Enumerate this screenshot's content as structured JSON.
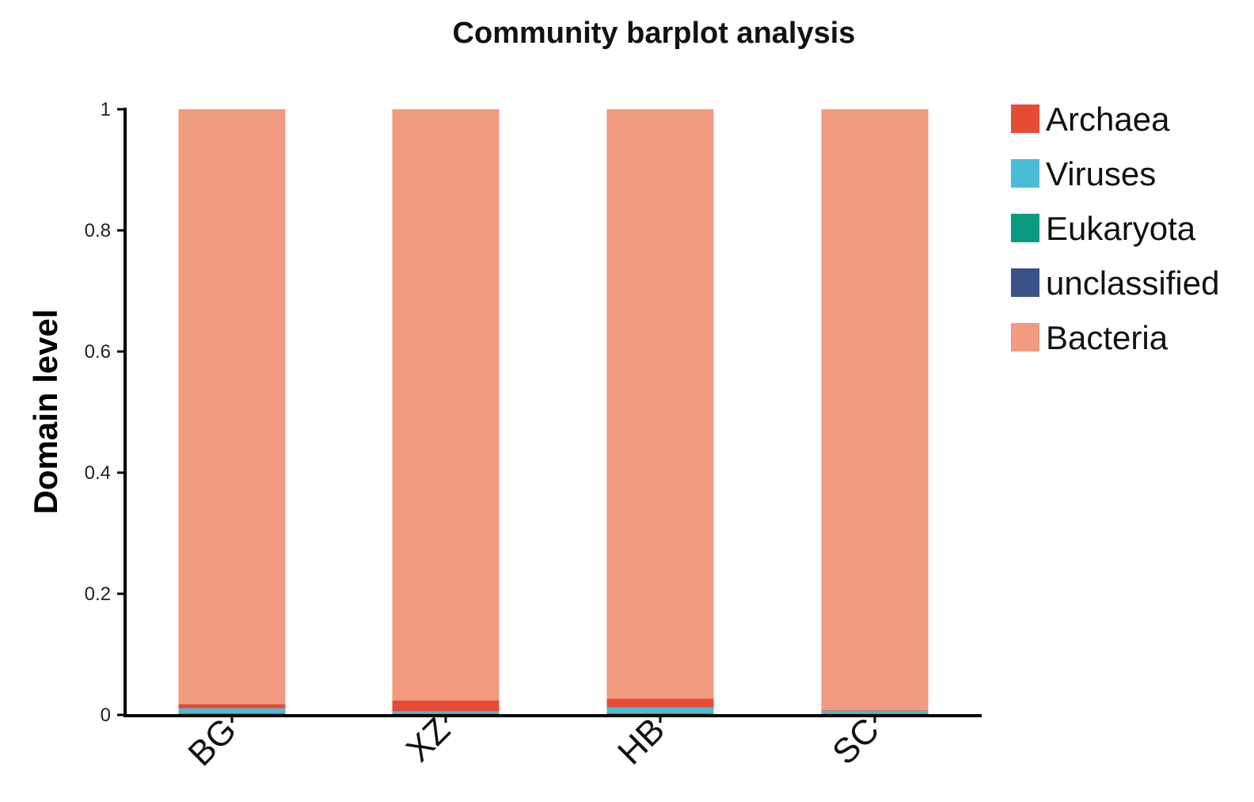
{
  "chart_data": {
    "type": "bar",
    "stacked": true,
    "title": "Community barplot analysis",
    "xlabel": "",
    "ylabel": "Domain level",
    "ylim": [
      0,
      1
    ],
    "y_ticks": [
      0,
      0.2,
      0.4,
      0.6,
      0.8,
      1
    ],
    "y_tick_labels": [
      "0",
      "0.2",
      "0.4",
      "0.6",
      "0.8",
      "1"
    ],
    "categories": [
      "BG",
      "XZ",
      "HB",
      "SC"
    ],
    "grid": false,
    "legend_position": "right",
    "series": [
      {
        "name": "unclassified",
        "color": "#3b5287",
        "values": [
          0.001,
          0.001,
          0.001,
          0.001
        ]
      },
      {
        "name": "Eukaryota",
        "color": "#0b9a80",
        "values": [
          0.002,
          0.001,
          0.002,
          0.001
        ]
      },
      {
        "name": "Viruses",
        "color": "#4cbbd6",
        "values": [
          0.008,
          0.004,
          0.009,
          0.005
        ]
      },
      {
        "name": "Archaea",
        "color": "#e64b36",
        "values": [
          0.007,
          0.018,
          0.015,
          0.001
        ]
      },
      {
        "name": "Bacteria",
        "color": "#f09a80",
        "values": [
          0.982,
          0.976,
          0.973,
          0.992
        ]
      }
    ],
    "legend_order": [
      "Archaea",
      "Viruses",
      "Eukaryota",
      "unclassified",
      "Bacteria"
    ]
  }
}
